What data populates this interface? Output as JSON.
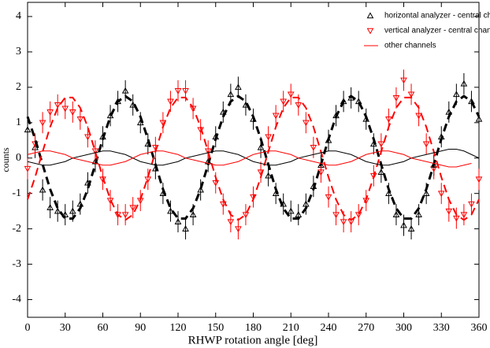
{
  "chart_data": {
    "type": "scatter",
    "xlabel": "RHWP rotation angle [deg]",
    "ylabel": "counts",
    "xlim": [
      0,
      360
    ],
    "ylim": [
      -4.5,
      4.4
    ],
    "xticks": [
      0,
      30,
      60,
      90,
      120,
      150,
      180,
      210,
      240,
      270,
      300,
      330,
      360
    ],
    "yticks": [
      -4,
      -3,
      -2,
      -1,
      0,
      1,
      2,
      3,
      4
    ],
    "legend": "upper right",
    "x": [
      0,
      6,
      12,
      18,
      24,
      30,
      36,
      42,
      48,
      54,
      60,
      66,
      72,
      78,
      84,
      90,
      96,
      102,
      108,
      114,
      120,
      126,
      132,
      138,
      144,
      150,
      156,
      162,
      168,
      174,
      180,
      186,
      192,
      198,
      204,
      210,
      216,
      222,
      228,
      234,
      240,
      246,
      252,
      258,
      264,
      270,
      276,
      282,
      288,
      294,
      300,
      306,
      312,
      318,
      324,
      330,
      336,
      342,
      348,
      354,
      360
    ],
    "series": [
      {
        "name": "horizontal analyzer - central channel",
        "color": "#000000",
        "marker": "triangle-up",
        "error": 0.3,
        "values": [
          0.8,
          0.3,
          -0.9,
          -1.4,
          -1.5,
          -1.6,
          -1.5,
          -1.3,
          -0.7,
          -0.1,
          0.6,
          1.2,
          1.6,
          1.9,
          1.5,
          1.0,
          0.4,
          -0.3,
          -1.0,
          -1.5,
          -1.8,
          -2.0,
          -1.6,
          -0.9,
          -0.1,
          0.6,
          1.3,
          1.8,
          2.0,
          1.5,
          1.1,
          0.3,
          -0.5,
          -1.0,
          -1.3,
          -1.5,
          -1.6,
          -1.3,
          -0.8,
          -0.2,
          0.5,
          1.2,
          1.6,
          1.7,
          1.6,
          1.1,
          0.4,
          -0.4,
          -1.0,
          -1.6,
          -1.9,
          -2.0,
          -1.6,
          -1.0,
          -0.2,
          0.6,
          1.3,
          1.8,
          2.1,
          1.6,
          1.1
        ]
      },
      {
        "name": "vertical analyzer - central channel",
        "color": "#ff0000",
        "marker": "triangle-down",
        "error": 0.3,
        "values": [
          -0.3,
          0.4,
          1.0,
          1.3,
          1.5,
          1.4,
          1.3,
          1.1,
          0.6,
          0.2,
          -0.6,
          -1.2,
          -1.6,
          -1.6,
          -1.4,
          -1.2,
          -0.6,
          0.3,
          1.0,
          1.6,
          1.9,
          1.9,
          1.4,
          0.8,
          0.2,
          -0.7,
          -1.3,
          -1.8,
          -2.0,
          -1.6,
          -1.1,
          -0.4,
          0.6,
          1.2,
          1.6,
          1.8,
          1.5,
          1.0,
          0.3,
          -0.4,
          -1.1,
          -1.6,
          -1.8,
          -1.8,
          -1.6,
          -1.2,
          -0.5,
          0.4,
          1.1,
          1.7,
          2.2,
          1.8,
          1.2,
          0.4,
          -0.3,
          -1.0,
          -1.5,
          -1.7,
          -1.6,
          -1.3,
          -0.6
        ]
      },
      {
        "color": "#000000",
        "style": "dashed",
        "values": [
          1.17,
          0.54,
          -0.18,
          -0.88,
          -1.42,
          -1.71,
          -1.71,
          -1.42,
          -0.88,
          -0.18,
          0.54,
          1.17,
          1.6,
          1.75,
          1.6,
          1.17,
          0.54,
          -0.18,
          -0.88,
          -1.42,
          -1.71,
          -1.71,
          -1.42,
          -0.88,
          -0.18,
          0.54,
          1.17,
          1.6,
          1.75,
          1.6,
          1.17,
          0.54,
          -0.18,
          -0.88,
          -1.42,
          -1.71,
          -1.71,
          -1.42,
          -0.88,
          -0.18,
          0.54,
          1.17,
          1.6,
          1.75,
          1.6,
          1.17,
          0.54,
          -0.18,
          -0.88,
          -1.42,
          -1.71,
          -1.71,
          -1.42,
          -0.88,
          -0.18,
          0.54,
          1.17,
          1.6,
          1.75,
          1.6,
          1.17
        ]
      },
      {
        "color": "#ff0000",
        "style": "dashed",
        "values": [
          -1.17,
          -0.54,
          0.18,
          0.88,
          1.42,
          1.71,
          1.71,
          1.42,
          0.88,
          0.18,
          -0.54,
          -1.17,
          -1.6,
          -1.75,
          -1.6,
          -1.17,
          -0.54,
          0.18,
          0.88,
          1.42,
          1.71,
          1.71,
          1.42,
          0.88,
          0.18,
          -0.54,
          -1.17,
          -1.6,
          -1.75,
          -1.6,
          -1.17,
          -0.54,
          0.18,
          0.88,
          1.42,
          1.71,
          1.71,
          1.42,
          0.88,
          0.18,
          -0.54,
          -1.17,
          -1.6,
          -1.75,
          -1.6,
          -1.17,
          -0.54,
          0.18,
          0.88,
          1.42,
          1.71,
          1.71,
          1.42,
          0.88,
          0.18,
          -0.54,
          -1.17,
          -1.6,
          -1.75,
          -1.6,
          -1.17
        ]
      },
      {
        "color": "#000000",
        "style": "solid",
        "values": [
          -0.1,
          -0.15,
          -0.2,
          -0.2,
          -0.15,
          -0.1,
          0,
          0.05,
          0.1,
          0.15,
          0.2,
          0.2,
          0.15,
          0.1,
          0,
          -0.1,
          -0.15,
          -0.2,
          -0.2,
          -0.15,
          -0.1,
          0,
          0.05,
          0.1,
          0.15,
          0.2,
          0.2,
          0.15,
          0.1,
          0,
          -0.1,
          -0.15,
          -0.2,
          -0.2,
          -0.15,
          -0.1,
          0,
          0.05,
          0.1,
          0.15,
          0.2,
          0.2,
          0.15,
          0.1,
          0,
          -0.1,
          -0.15,
          -0.2,
          -0.2,
          -0.15,
          -0.1,
          0,
          0.05,
          0.1,
          0.15,
          0.2,
          0.25,
          0.25,
          0.2,
          0.1,
          0
        ]
      },
      {
        "name": "other channels",
        "color": "#ff0000",
        "style": "solid",
        "values": [
          0.1,
          0.15,
          0.2,
          0.2,
          0.15,
          0.1,
          0,
          -0.05,
          -0.1,
          -0.15,
          -0.2,
          -0.2,
          -0.15,
          -0.1,
          0,
          0.1,
          0.15,
          0.2,
          0.2,
          0.15,
          0.1,
          0,
          -0.05,
          -0.1,
          -0.15,
          -0.2,
          -0.2,
          -0.15,
          -0.1,
          0,
          0.1,
          0.15,
          0.2,
          0.2,
          0.15,
          0.1,
          0,
          -0.05,
          -0.1,
          -0.15,
          -0.2,
          -0.2,
          -0.15,
          -0.1,
          0,
          0.1,
          0.15,
          0.2,
          0.2,
          0.15,
          0.1,
          0,
          -0.05,
          -0.1,
          -0.15,
          -0.2,
          -0.25,
          -0.25,
          -0.2,
          -0.15,
          null
        ]
      }
    ]
  }
}
